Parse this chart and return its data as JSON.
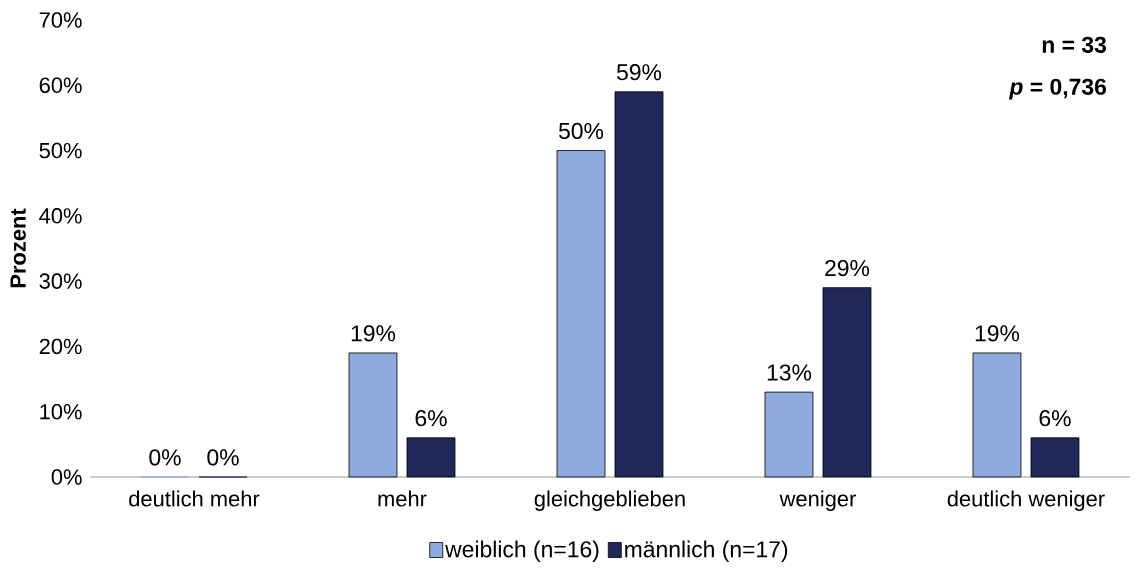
{
  "chart_data": {
    "type": "bar",
    "ylabel": "Prozent",
    "categories": [
      "deutlich mehr",
      "mehr",
      "gleichgeblieben",
      "weniger",
      "deutlich weniger"
    ],
    "series": [
      {
        "name": "weiblich (n=16)",
        "color": "#8faadc",
        "values": [
          0,
          19,
          50,
          13,
          19
        ],
        "value_labels": [
          "0%",
          "19%",
          "50%",
          "13%",
          "19%"
        ]
      },
      {
        "name": "männlich (n=17)",
        "color": "#1f2858",
        "values": [
          0,
          6,
          59,
          29,
          6
        ],
        "value_labels": [
          "0%",
          "6%",
          "59%",
          "29%",
          "6%"
        ]
      }
    ],
    "ylim": [
      0,
      70
    ],
    "yticks": [
      {
        "value": 0,
        "label": "0%"
      },
      {
        "value": 10,
        "label": "10%"
      },
      {
        "value": 20,
        "label": "20%"
      },
      {
        "value": 30,
        "label": "30%"
      },
      {
        "value": 40,
        "label": "40%"
      },
      {
        "value": 50,
        "label": "50%"
      },
      {
        "value": 60,
        "label": "60%"
      },
      {
        "value": 70,
        "label": "70%"
      }
    ],
    "annotations": [
      "n = 33",
      "*p* = 0,736"
    ],
    "grid": false,
    "legend": "bottom"
  }
}
